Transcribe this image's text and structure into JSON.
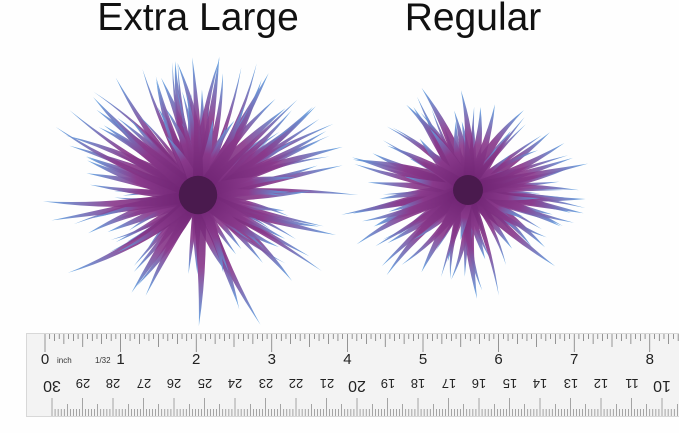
{
  "labels": {
    "extra_large": "Extra Large",
    "regular": "Regular"
  },
  "ruler": {
    "unit_label": "inch",
    "fraction_label": "1/32",
    "inch_numbers": [
      "0",
      "1",
      "2",
      "3",
      "4",
      "5",
      "6",
      "7",
      "8"
    ],
    "cm_numbers": [
      "30",
      "29",
      "28",
      "27",
      "26",
      "25",
      "24",
      "23",
      "22",
      "21",
      "20",
      "19",
      "18",
      "17",
      "16",
      "15",
      "14",
      "13",
      "12",
      "11",
      "10"
    ]
  },
  "colors": {
    "leaf_base": "#6a1f6e",
    "leaf_mid": "#8a3a8c",
    "leaf_tip": "#5fa8e6",
    "background": "#fefefe"
  }
}
